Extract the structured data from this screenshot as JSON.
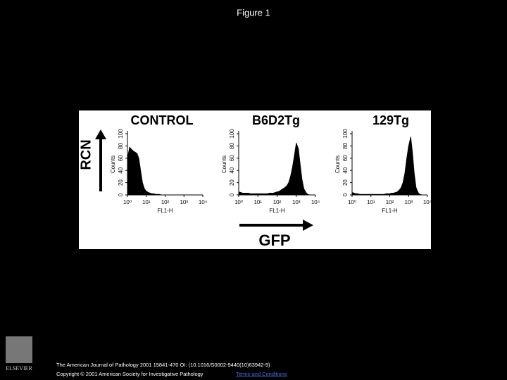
{
  "title": "Figure 1",
  "figure": {
    "y_label": "RCN",
    "x_label": "GFP"
  },
  "logo": "ELSEVIER",
  "footer": {
    "citation": "The American Journal of Pathology 2001 15841-470 OI: (10.1016/S0002-9440(10)63942-9)",
    "copyright": "Copyright © 2001 American Society for Investigative Pathology",
    "link": "Terms and Conditions"
  },
  "chart_data": [
    {
      "type": "area",
      "title": "CONTROL",
      "x_label": "FL1-H",
      "y_label": "Counts",
      "color": "#000000",
      "log_x": true,
      "x": [
        1,
        1.3,
        1.6,
        2,
        2.5,
        3.2,
        4,
        5,
        6.3,
        8,
        10,
        13,
        16,
        20,
        25,
        32,
        40,
        50,
        63,
        80,
        100,
        130,
        160,
        200,
        250,
        320,
        400,
        500,
        630,
        800,
        1000,
        1300,
        1600,
        2000,
        2500,
        3200,
        4000,
        5000,
        6300,
        8000,
        10000
      ],
      "values": [
        60,
        78,
        75,
        72,
        70,
        68,
        60,
        40,
        20,
        10,
        6,
        4,
        3,
        2,
        2,
        1,
        1,
        1,
        0,
        0,
        0,
        0,
        0,
        0,
        0,
        0,
        0,
        0,
        0,
        0,
        0,
        0,
        0,
        0,
        0,
        0,
        0,
        0,
        0,
        0,
        0
      ],
      "xlim": [
        1,
        10000
      ],
      "xticks": [
        {
          "value": 1,
          "label": "10⁰"
        },
        {
          "value": 10,
          "label": "10¹"
        },
        {
          "value": 100,
          "label": "10²"
        },
        {
          "value": 1000,
          "label": "10³"
        },
        {
          "value": 10000,
          "label": "10⁴"
        }
      ],
      "ylim": [
        0,
        100
      ],
      "yticks": [
        0,
        20,
        40,
        60,
        80,
        100
      ]
    },
    {
      "type": "area",
      "title": "B6D2Tg",
      "x_label": "FL1-H",
      "y_label": "Counts",
      "color": "#000000",
      "log_x": true,
      "x": [
        1,
        1.3,
        1.6,
        2,
        2.5,
        3.2,
        4,
        5,
        6.3,
        8,
        10,
        13,
        16,
        20,
        25,
        32,
        40,
        50,
        63,
        80,
        100,
        130,
        160,
        200,
        250,
        320,
        400,
        500,
        630,
        800,
        1000,
        1300,
        1600,
        2000,
        2500,
        3200,
        4000,
        5000,
        6300,
        8000,
        10000
      ],
      "values": [
        5,
        4,
        3,
        3,
        3,
        3,
        2,
        2,
        2,
        2,
        2,
        2,
        2,
        2,
        2,
        2,
        3,
        3,
        3,
        4,
        5,
        6,
        8,
        10,
        12,
        15,
        20,
        30,
        45,
        65,
        85,
        75,
        50,
        25,
        10,
        4,
        1,
        0,
        0,
        0,
        0
      ],
      "xlim": [
        1,
        10000
      ],
      "xticks": [
        {
          "value": 1,
          "label": "10⁰"
        },
        {
          "value": 10,
          "label": "10¹"
        },
        {
          "value": 100,
          "label": "10²"
        },
        {
          "value": 1000,
          "label": "10³"
        },
        {
          "value": 10000,
          "label": "10⁴"
        }
      ],
      "ylim": [
        0,
        100
      ],
      "yticks": [
        0,
        20,
        40,
        60,
        80,
        100
      ]
    },
    {
      "type": "area",
      "title": "129Tg",
      "x_label": "FL1-H",
      "y_label": "Counts",
      "color": "#000000",
      "log_x": true,
      "x": [
        1,
        1.3,
        1.6,
        2,
        2.5,
        3.2,
        4,
        5,
        6.3,
        8,
        10,
        13,
        16,
        20,
        25,
        32,
        40,
        50,
        63,
        80,
        100,
        130,
        160,
        200,
        250,
        320,
        400,
        500,
        630,
        800,
        1000,
        1300,
        1600,
        2000,
        2500,
        3200,
        4000,
        5000,
        6300,
        8000,
        10000
      ],
      "values": [
        4,
        3,
        2,
        2,
        1,
        1,
        1,
        1,
        1,
        1,
        1,
        1,
        1,
        1,
        1,
        1,
        1,
        1,
        2,
        2,
        2,
        3,
        3,
        4,
        5,
        8,
        12,
        20,
        35,
        60,
        80,
        95,
        70,
        35,
        12,
        4,
        1,
        0,
        0,
        0,
        0
      ],
      "xlim": [
        1,
        10000
      ],
      "xticks": [
        {
          "value": 1,
          "label": "10⁰"
        },
        {
          "value": 10,
          "label": "10¹"
        },
        {
          "value": 100,
          "label": "10²"
        },
        {
          "value": 1000,
          "label": "10³"
        },
        {
          "value": 10000,
          "label": "10⁴"
        }
      ],
      "ylim": [
        0,
        100
      ],
      "yticks": [
        0,
        20,
        40,
        60,
        80,
        100
      ]
    }
  ]
}
